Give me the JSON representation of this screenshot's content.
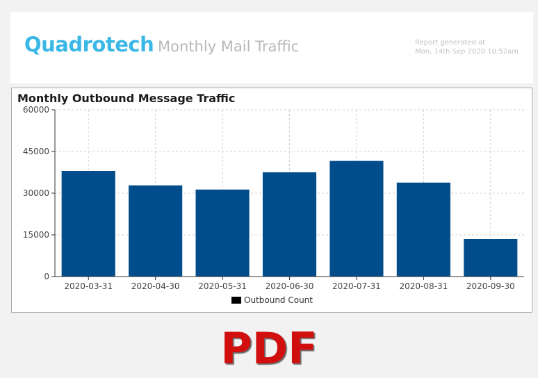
{
  "header": {
    "logo_text": "Quadrotech",
    "title": "Monthly Mail Traffic",
    "generated_line1": "Report generated at",
    "generated_line2": "Mon, 14th Sep 2020 10:52am"
  },
  "colors": {
    "accent": "#3ab7e6",
    "bar": "#014d8b",
    "pdf": "#d20f0f"
  },
  "chart_data": {
    "type": "bar",
    "title": "Monthly Outbound Message Traffic",
    "categories": [
      "2020-03-31",
      "2020-04-30",
      "2020-05-31",
      "2020-06-30",
      "2020-07-31",
      "2020-08-31",
      "2020-09-30"
    ],
    "series": [
      {
        "name": "Outbound Count",
        "values": [
          38000,
          32800,
          31300,
          37500,
          41600,
          33800,
          13500
        ]
      }
    ],
    "ylim": [
      0,
      60000
    ],
    "yticks": [
      "0",
      "15000",
      "30000",
      "45000",
      "60000"
    ],
    "grid": true,
    "legend": "bottom-center"
  },
  "footer": {
    "pdf_label": "PDF"
  }
}
